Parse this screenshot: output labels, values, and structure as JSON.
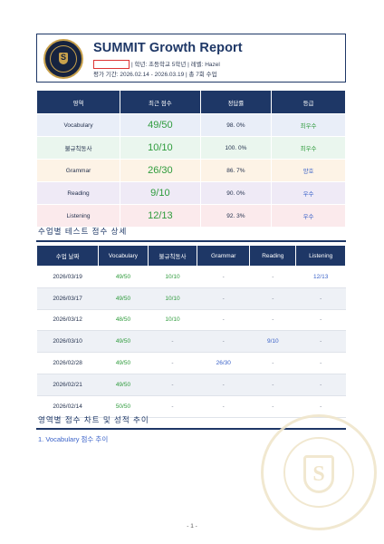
{
  "header": {
    "title": "SUMMIT Growth Report",
    "line1": "| 학년: 초등학교 5학년 | 레벨: Hazel",
    "line2": "평가 기간: 2026.02.14 - 2026.03.19 | 총 7회 수업"
  },
  "summary": {
    "headers": [
      "영역",
      "최근 점수",
      "정답률",
      "등급"
    ],
    "rows": [
      {
        "area": "Vocabulary",
        "score": "49/50",
        "rate": "98. 0%",
        "grade": "최우수",
        "bg": "#e9eef8",
        "grade_color": "#2e9b3c"
      },
      {
        "area": "불규칙동사",
        "score": "10/10",
        "rate": "100. 0%",
        "grade": "최우수",
        "bg": "#eaf6ee",
        "grade_color": "#2e9b3c"
      },
      {
        "area": "Grammar",
        "score": "26/30",
        "rate": "86. 7%",
        "grade": "양호",
        "bg": "#fdf3e6",
        "grade_color": "#3b63c9"
      },
      {
        "area": "Reading",
        "score": "9/10",
        "rate": "90. 0%",
        "grade": "우수",
        "bg": "#efeaf6",
        "grade_color": "#3b63c9"
      },
      {
        "area": "Listening",
        "score": "12/13",
        "rate": "92. 3%",
        "grade": "우수",
        "bg": "#fbeaec",
        "grade_color": "#3b63c9"
      }
    ]
  },
  "detail_section_title": "수업별 테스트 점수 상세",
  "detail": {
    "headers": [
      "수업 날짜",
      "Vocabulary",
      "불규칙동사",
      "Grammar",
      "Reading",
      "Listening"
    ],
    "rows": [
      [
        "2026/03/19",
        "49/50",
        "10/10",
        "-",
        "-",
        "12/13"
      ],
      [
        "2026/03/17",
        "49/50",
        "10/10",
        "-",
        "-",
        "-"
      ],
      [
        "2026/03/12",
        "48/50",
        "10/10",
        "-",
        "-",
        "-"
      ],
      [
        "2026/03/10",
        "49/50",
        "-",
        "-",
        "9/10",
        "-"
      ],
      [
        "2026/02/28",
        "49/50",
        "-",
        "26/30",
        "-",
        "-"
      ],
      [
        "2026/02/21",
        "49/50",
        "-",
        "-",
        "-",
        "-"
      ],
      [
        "2026/02/14",
        "50/50",
        "-",
        "-",
        "-",
        "-"
      ]
    ]
  },
  "chart_section_title": "영역별 점수 차트 및 성적 추이",
  "chart_subtitle": "1. Vocabulary 점수 추이",
  "page_number": "- 1 -",
  "colors": {
    "navy": "#1e3766",
    "green": "#2e9b3c",
    "blue": "#3b63c9",
    "gold": "#c8a14c"
  }
}
